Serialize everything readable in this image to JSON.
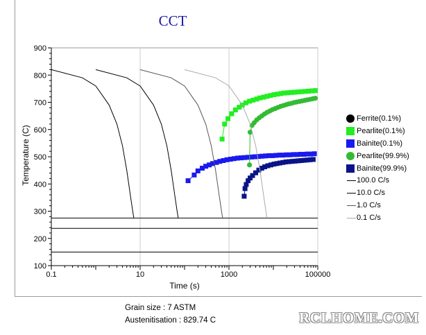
{
  "chart_data": {
    "type": "line",
    "title": "CCT",
    "xlabel": "Time (s)",
    "ylabel": "Temperature (C)",
    "xscale": "log",
    "xlim": [
      0.1,
      100000
    ],
    "ylim": [
      100,
      900
    ],
    "x_ticks": [
      "0.1",
      "10",
      "1000",
      "100000"
    ],
    "y_ticks": [
      "100",
      "200",
      "300",
      "400",
      "500",
      "600",
      "700",
      "800",
      "900"
    ],
    "grid": "vertical at decades 0.1/10/1000 and at 100000",
    "legend_position": "right",
    "horizontal_lines": [
      275,
      237,
      150
    ],
    "series": [
      {
        "name": "Ferrite(0.1%)",
        "marker": "circle",
        "color": "#000000",
        "x": [],
        "y": []
      },
      {
        "name": "Pearlite(0.1%)",
        "marker": "square",
        "color": "#22ee22",
        "x": [
          700,
          800,
          950,
          1150,
          1400,
          1700,
          2000,
          2400,
          2900,
          3500,
          4200,
          5000,
          6000,
          7200,
          8600,
          10300,
          12300,
          14700,
          17600,
          21000,
          25000,
          30000,
          36000,
          43000,
          52000,
          62000,
          74000,
          88000
        ],
        "y": [
          565,
          620,
          640,
          658,
          672,
          682,
          690,
          698,
          704,
          708,
          712,
          716,
          719,
          722,
          725,
          728,
          730,
          732,
          734,
          735,
          736,
          737,
          738,
          739,
          740,
          741,
          742,
          743
        ]
      },
      {
        "name": "Bainite(0.1%)",
        "marker": "square",
        "color": "#1a1aee",
        "x": [
          120,
          165,
          200,
          250,
          300,
          360,
          430,
          520,
          620,
          750,
          900,
          1080,
          1300,
          1560,
          1870,
          2240,
          2690,
          3220,
          3860,
          4630,
          5550,
          6650,
          7970,
          9550,
          11450,
          13720,
          16450,
          19720,
          23640,
          28330,
          33960,
          40700,
          48790,
          58480,
          70100,
          84000
        ],
        "y": [
          412,
          433,
          448,
          458,
          465,
          470,
          475,
          479,
          483,
          486,
          489,
          491,
          493,
          495,
          496,
          497,
          498,
          499,
          500,
          501,
          502,
          503,
          504,
          504,
          505,
          506,
          506,
          507,
          507,
          508,
          508,
          509,
          509,
          510,
          510,
          511
        ]
      },
      {
        "name": "Pearlite(99.9%)",
        "marker": "circle",
        "color": "#33bb33",
        "x": [
          2900,
          3000,
          3300,
          3700,
          4200,
          4800,
          5500,
          6300,
          7200,
          8300,
          9500,
          11000,
          12600,
          14500,
          16700,
          19200,
          22000,
          25300,
          29000,
          33400,
          38400,
          44100,
          50700,
          58300,
          67000,
          77000,
          88000
        ],
        "y": [
          470,
          590,
          615,
          625,
          635,
          643,
          650,
          657,
          663,
          668,
          673,
          677,
          681,
          685,
          688,
          691,
          694,
          696,
          699,
          701,
          703,
          705,
          707,
          709,
          711,
          713,
          715
        ]
      },
      {
        "name": "Bainite(99.9%)",
        "marker": "square",
        "color": "#0a1488",
        "x": [
          2200,
          2300,
          2450,
          2700,
          3000,
          3400,
          4000,
          4700,
          5500,
          6400,
          7500,
          8800,
          10300,
          12000,
          14000,
          16400,
          19200,
          22500,
          26300,
          30800,
          36000,
          42100,
          49200,
          57600,
          67400,
          78900
        ],
        "y": [
          355,
          383,
          398,
          412,
          422,
          431,
          441,
          451,
          458,
          463,
          467,
          470,
          473,
          475,
          477,
          479,
          481,
          482,
          483,
          484,
          485,
          486,
          487,
          488,
          489,
          490
        ]
      },
      {
        "name": "100.0 C/s",
        "color": "#000000",
        "x": [
          0.1,
          0.5,
          1,
          2,
          3,
          4,
          5,
          6,
          6.8,
          7.2
        ],
        "y": [
          820,
          790,
          760,
          690,
          620,
          540,
          450,
          360,
          300,
          275
        ]
      },
      {
        "name": "10.0 C/s",
        "color": "#000000",
        "x": [
          1,
          5,
          10,
          20,
          30,
          40,
          50,
          60,
          68,
          72
        ],
        "y": [
          820,
          790,
          760,
          690,
          620,
          540,
          450,
          360,
          300,
          275
        ]
      },
      {
        "name": "1.0 C/s",
        "color": "#555555",
        "x": [
          10,
          50,
          100,
          200,
          300,
          400,
          500,
          600,
          680,
          720
        ],
        "y": [
          820,
          790,
          760,
          690,
          620,
          540,
          450,
          360,
          300,
          275
        ]
      },
      {
        "name": "0.1 C/s",
        "color": "#aaaaaa",
        "x": [
          100,
          500,
          1000,
          2000,
          3000,
          4000,
          5000,
          6000,
          6800,
          7200
        ],
        "y": [
          820,
          790,
          760,
          690,
          620,
          540,
          450,
          360,
          300,
          275
        ]
      }
    ]
  },
  "legend": {
    "items": [
      {
        "label": "Ferrite(0.1%)",
        "marker": "circle",
        "color": "#000000"
      },
      {
        "label": "Pearlite(0.1%)",
        "marker": "square",
        "color": "#22ee22"
      },
      {
        "label": "Bainite(0.1%)",
        "marker": "square",
        "color": "#1a1aee"
      },
      {
        "label": "Pearlite(99.9%)",
        "marker": "circle",
        "color": "#33bb33"
      },
      {
        "label": "Bainite(99.9%)",
        "marker": "square",
        "color": "#0a1488"
      },
      {
        "label": "100.0 C/s",
        "marker": "line",
        "color": "#000000"
      },
      {
        "label": "10.0 C/s",
        "marker": "line",
        "color": "#000000"
      },
      {
        "label": "1.0 C/s",
        "marker": "line",
        "color": "#555555"
      },
      {
        "label": "0.1 C/s",
        "marker": "line",
        "color": "#aaaaaa"
      }
    ]
  },
  "info": {
    "grain_size": "Grain size : 7 ASTM",
    "austenitisation": "Austenitisation : 829.74 C"
  },
  "watermark": "RCLHOME.COM"
}
